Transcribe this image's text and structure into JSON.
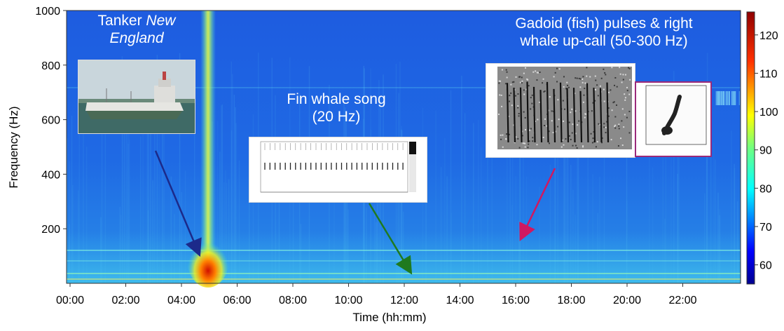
{
  "chart_data": {
    "type": "heatmap",
    "title": "",
    "xlabel": "Time (hh:mm)",
    "ylabel": "Frequency (Hz)",
    "x_ticks": [
      "00:00",
      "02:00",
      "04:00",
      "06:00",
      "08:00",
      "10:00",
      "12:00",
      "14:00",
      "16:00",
      "18:00",
      "20:00",
      "22:00"
    ],
    "y_ticks": [
      200,
      400,
      600,
      800,
      1000
    ],
    "ylim": [
      0,
      1000
    ],
    "colorbar_ticks": [
      60,
      70,
      80,
      90,
      100,
      110,
      120
    ],
    "colorbar_range": [
      55,
      126
    ],
    "colormap": "jet",
    "events": [
      {
        "label": "Tanker New England",
        "time": "05:00",
        "freq_hz": 60
      },
      {
        "label": "Fin whale song (20 Hz)",
        "time": "12:30",
        "freq_hz": 20
      },
      {
        "label": "Gadoid (fish) pulses & right whale up-call (50-300 Hz)",
        "time": "16:00",
        "freq_hz": 170
      }
    ]
  },
  "annotations": {
    "tanker": {
      "line1": "Tanker ",
      "line1_italic": "New",
      "line2_italic": "England"
    },
    "fin": {
      "line1": "Fin whale song",
      "line2": "(20 Hz)"
    },
    "gadoid": {
      "line1": "Gadoid (fish) pulses & right",
      "line2": "whale up-call (50-300 Hz)"
    }
  },
  "colors": {
    "background": "#1a52d8",
    "tanker_arrow": "#1c2a8a",
    "fin_arrow": "#1f7a1f",
    "gadoid_arrow": "#d01860",
    "inset_frame": "#9a2a7a"
  }
}
